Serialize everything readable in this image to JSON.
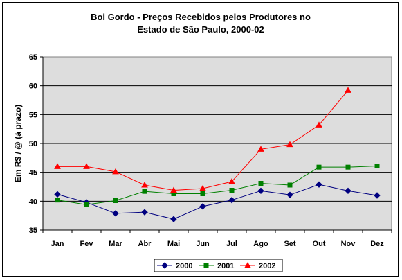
{
  "chart_data": {
    "type": "line",
    "title": [
      "Boi Gordo - Preços Recebidos pelos Produtores no",
      "Estado de São Paulo, 2000-02"
    ],
    "xlabel": "",
    "ylabel": "Em R$ / @ (à prazo)",
    "categories": [
      "Jan",
      "Fev",
      "Mar",
      "Abr",
      "Mai",
      "Jun",
      "Jul",
      "Ago",
      "Set",
      "Out",
      "Nov",
      "Dez"
    ],
    "ylim": [
      35,
      65
    ],
    "yticks": [
      35,
      40,
      45,
      50,
      55,
      60,
      65
    ],
    "grid": true,
    "legend_position": "bottom",
    "series": [
      {
        "name": "2000",
        "color": "#000080",
        "marker": "diamond",
        "values": [
          41.2,
          39.8,
          37.9,
          38.1,
          36.9,
          39.1,
          40.2,
          41.8,
          41.1,
          42.9,
          41.8,
          41.0
        ]
      },
      {
        "name": "2001",
        "color": "#008000",
        "marker": "square",
        "values": [
          40.2,
          39.4,
          40.1,
          41.7,
          41.3,
          41.3,
          41.9,
          43.1,
          42.8,
          45.9,
          45.9,
          46.1
        ]
      },
      {
        "name": "2002",
        "color": "#ff0000",
        "marker": "triangle",
        "values": [
          46.0,
          46.0,
          45.1,
          42.8,
          41.9,
          42.2,
          43.4,
          49.0,
          49.8,
          53.2,
          59.2,
          null
        ]
      }
    ]
  }
}
